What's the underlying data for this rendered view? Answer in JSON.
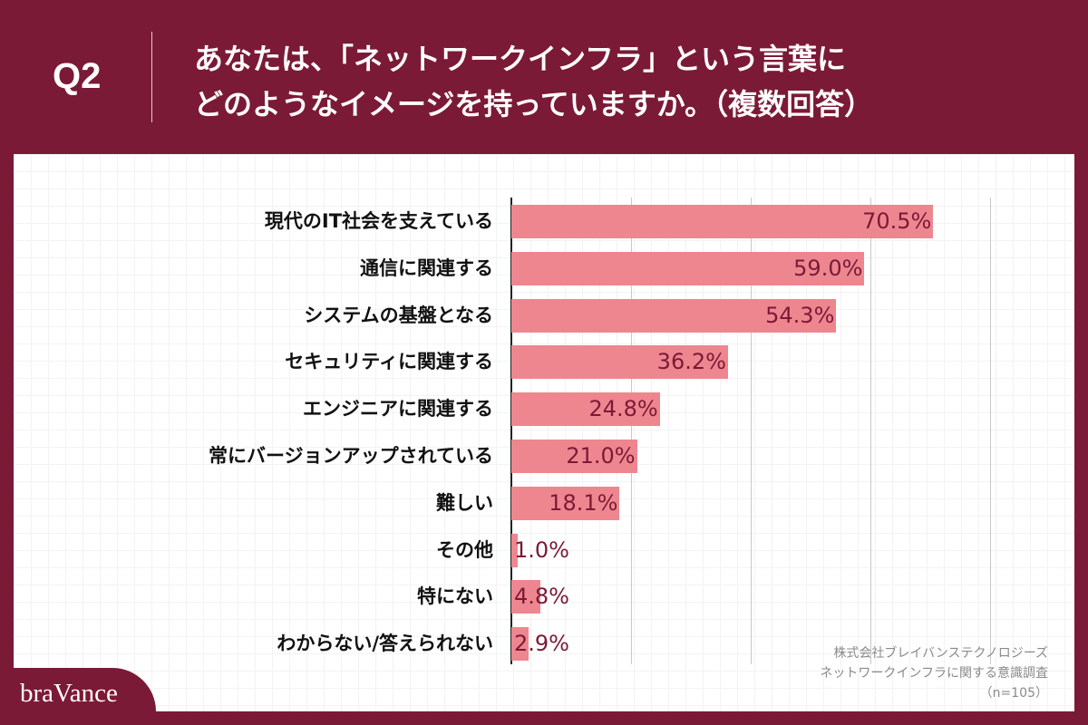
{
  "header": {
    "question_no": "Q2",
    "title": "あなたは、「ネットワークインフラ」という言葉に\nどのようなイメージを持っていますか。（複数回答）"
  },
  "colors": {
    "background": "#7b1a36",
    "bar": "#ee8690",
    "value_label": "#7b1a36"
  },
  "chart_data": {
    "type": "bar",
    "orientation": "horizontal",
    "xlim": [
      0,
      100
    ],
    "grid": true,
    "categories": [
      "現代のIT社会を支えている",
      "通信に関連する",
      "システムの基盤となる",
      "セキュリティに関連する",
      "エンジニアに関連する",
      "常にバージョンアップされている",
      "難しい",
      "その他",
      "特にない",
      "わからない/答えられない"
    ],
    "values": [
      70.5,
      59.0,
      54.3,
      36.2,
      24.8,
      21.0,
      18.1,
      1.0,
      4.8,
      2.9
    ],
    "labels": [
      "70.5%",
      "59.0%",
      "54.3%",
      "36.2%",
      "24.8%",
      "21.0%",
      "18.1%",
      "1.0%",
      "4.8%",
      "2.9%"
    ]
  },
  "note": {
    "line1": "株式会社ブレイバンステクノロジーズ",
    "line2": "ネットワークインフラに関する意識調査",
    "line3": "（n=105）"
  },
  "logo": {
    "text": "braVance"
  }
}
